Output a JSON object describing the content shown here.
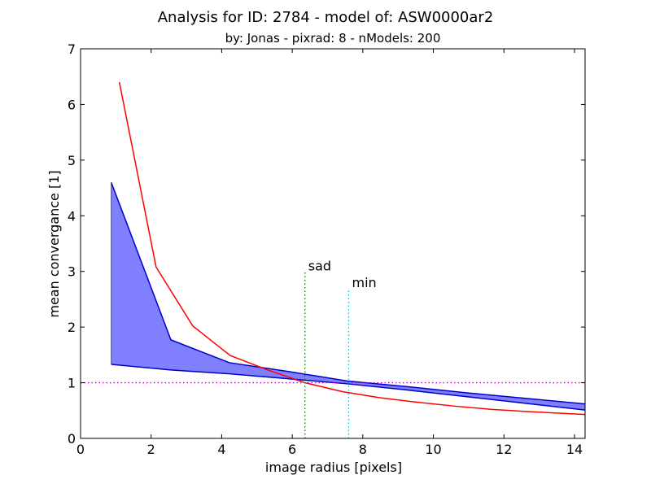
{
  "chart_data": {
    "type": "line",
    "title": "Analysis for ID: 2784 - model of: ASW0000ar2",
    "subtitle": "by: Jonas - pixrad: 8 - nModels: 200",
    "xlabel": "image radius [pixels]",
    "ylabel": "mean convergance [1]",
    "xlim": [
      0,
      14.3
    ],
    "ylim": [
      0,
      7
    ],
    "x_ticks": [
      0,
      2,
      4,
      6,
      8,
      10,
      12,
      14
    ],
    "y_ticks": [
      0,
      1,
      2,
      3,
      4,
      5,
      6,
      7
    ],
    "grid": false,
    "legend": "none",
    "band": {
      "color": "#0000cc",
      "fill": "#8080ff",
      "x": [
        0.87,
        2.56,
        4.22,
        5.91,
        7.57,
        9.26,
        10.92,
        12.61,
        14.3
      ],
      "upper": [
        4.6,
        1.77,
        1.36,
        1.2,
        1.03,
        0.93,
        0.82,
        0.72,
        0.62
      ],
      "lower": [
        1.33,
        1.23,
        1.16,
        1.07,
        0.98,
        0.87,
        0.75,
        0.63,
        0.51
      ]
    },
    "series": [
      {
        "color": "#ff0000",
        "x": [
          1.1,
          2.14,
          3.18,
          4.24,
          5.3,
          6.36,
          7.42,
          8.48,
          9.54,
          10.6,
          11.66,
          12.72,
          14.3
        ],
        "y": [
          6.4,
          3.08,
          2.02,
          1.49,
          1.23,
          1.0,
          0.84,
          0.73,
          0.65,
          0.58,
          0.52,
          0.48,
          0.43
        ]
      }
    ],
    "reference_lines": [
      {
        "orientation": "horizontal",
        "value": 1.0,
        "color": "#bf00bf",
        "style": "dotted"
      },
      {
        "orientation": "vertical",
        "value": 6.36,
        "ymax": 3.0,
        "color": "#008000",
        "style": "dotted",
        "label": "sad"
      },
      {
        "orientation": "vertical",
        "value": 7.6,
        "ymax": 2.7,
        "color": "#00bfbf",
        "style": "dotted",
        "label": "min"
      }
    ]
  }
}
